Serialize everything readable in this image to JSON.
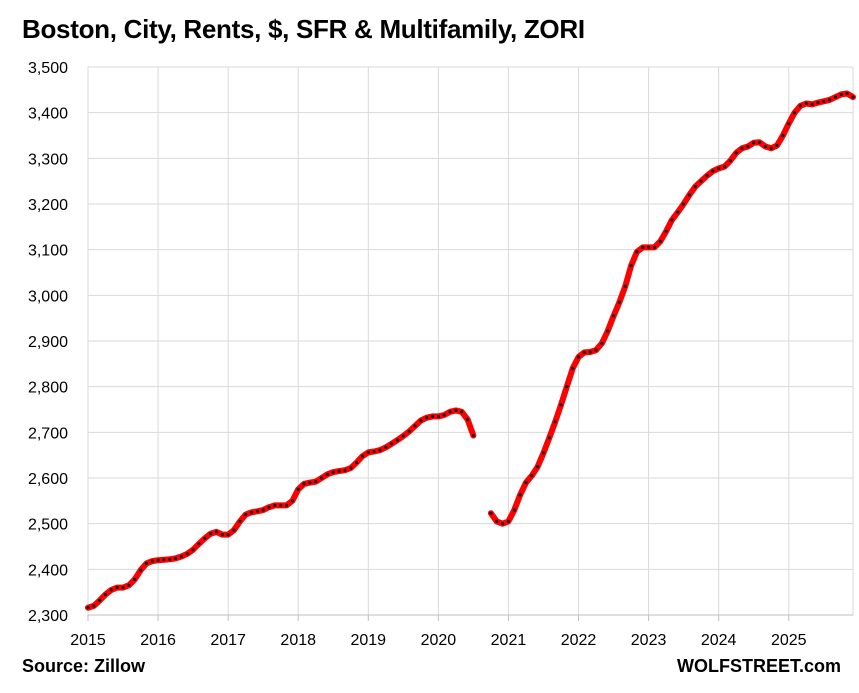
{
  "chart_data": {
    "type": "line",
    "title": "Boston, City, Rents, $, SFR & Multifamily, ZORI",
    "source": "Source: Zillow",
    "brand": "WOLFSTREET.com",
    "xlabel": "",
    "ylabel": "",
    "ylim": [
      2300,
      3500
    ],
    "xlim": [
      2015.0,
      2025.917
    ],
    "y_ticks": [
      2300,
      2400,
      2500,
      2600,
      2700,
      2800,
      2900,
      3000,
      3100,
      3200,
      3300,
      3400,
      3500
    ],
    "y_tick_labels": [
      "2,300",
      "2,400",
      "2,500",
      "2,600",
      "2,700",
      "2,800",
      "2,900",
      "3,000",
      "3,100",
      "3,200",
      "3,300",
      "3,400",
      "3,500"
    ],
    "x_ticks": [
      2015,
      2016,
      2017,
      2018,
      2019,
      2020,
      2021,
      2022,
      2023,
      2024,
      2025
    ],
    "x_tick_labels": [
      "2015",
      "2016",
      "2017",
      "2018",
      "2019",
      "2020",
      "2021",
      "2022",
      "2023",
      "2024",
      "2025"
    ],
    "grid": true,
    "colors": {
      "line": "#ff0000",
      "markers": "#1a1a1a",
      "grid": "#d9d9d9"
    },
    "series": [
      {
        "segments": [
          [
            [
              2015.0,
              2316
            ],
            [
              2015.083,
              2320
            ],
            [
              2015.167,
              2332
            ],
            [
              2015.25,
              2345
            ],
            [
              2015.333,
              2355
            ],
            [
              2015.417,
              2360
            ],
            [
              2015.5,
              2360
            ],
            [
              2015.583,
              2365
            ],
            [
              2015.667,
              2378
            ],
            [
              2015.75,
              2398
            ],
            [
              2015.833,
              2413
            ],
            [
              2015.917,
              2418
            ],
            [
              2016.0,
              2420
            ],
            [
              2016.083,
              2421
            ],
            [
              2016.167,
              2422
            ],
            [
              2016.25,
              2424
            ],
            [
              2016.333,
              2428
            ],
            [
              2016.417,
              2434
            ],
            [
              2016.5,
              2443
            ],
            [
              2016.583,
              2456
            ],
            [
              2016.667,
              2468
            ],
            [
              2016.75,
              2478
            ],
            [
              2016.833,
              2482
            ],
            [
              2016.917,
              2476
            ],
            [
              2017.0,
              2476
            ],
            [
              2017.083,
              2486
            ],
            [
              2017.167,
              2505
            ],
            [
              2017.25,
              2520
            ],
            [
              2017.333,
              2525
            ],
            [
              2017.417,
              2527
            ],
            [
              2017.5,
              2530
            ],
            [
              2017.583,
              2536
            ],
            [
              2017.667,
              2540
            ],
            [
              2017.75,
              2540
            ],
            [
              2017.833,
              2540
            ],
            [
              2017.917,
              2550
            ],
            [
              2018.0,
              2575
            ],
            [
              2018.083,
              2587
            ],
            [
              2018.167,
              2590
            ],
            [
              2018.25,
              2592
            ],
            [
              2018.333,
              2600
            ],
            [
              2018.417,
              2608
            ],
            [
              2018.5,
              2613
            ],
            [
              2018.583,
              2615
            ],
            [
              2018.667,
              2617
            ],
            [
              2018.75,
              2622
            ],
            [
              2018.833,
              2634
            ],
            [
              2018.917,
              2648
            ],
            [
              2019.0,
              2656
            ],
            [
              2019.083,
              2658
            ],
            [
              2019.167,
              2661
            ],
            [
              2019.25,
              2667
            ],
            [
              2019.333,
              2675
            ],
            [
              2019.417,
              2683
            ],
            [
              2019.5,
              2692
            ],
            [
              2019.583,
              2702
            ],
            [
              2019.667,
              2714
            ],
            [
              2019.75,
              2726
            ],
            [
              2019.833,
              2732
            ],
            [
              2019.917,
              2735
            ],
            [
              2020.0,
              2735
            ],
            [
              2020.083,
              2738
            ],
            [
              2020.167,
              2745
            ],
            [
              2020.25,
              2748
            ],
            [
              2020.333,
              2745
            ],
            [
              2020.417,
              2728
            ],
            [
              2020.5,
              2693
            ]
          ],
          [
            [
              2020.75,
              2523
            ],
            [
              2020.833,
              2505
            ],
            [
              2020.917,
              2500
            ],
            [
              2021.0,
              2505
            ],
            [
              2021.083,
              2530
            ],
            [
              2021.167,
              2563
            ],
            [
              2021.25,
              2590
            ],
            [
              2021.333,
              2605
            ],
            [
              2021.417,
              2625
            ],
            [
              2021.5,
              2655
            ],
            [
              2021.583,
              2688
            ],
            [
              2021.667,
              2723
            ],
            [
              2021.75,
              2760
            ],
            [
              2021.833,
              2800
            ],
            [
              2021.917,
              2840
            ],
            [
              2022.0,
              2865
            ],
            [
              2022.083,
              2875
            ],
            [
              2022.167,
              2876
            ],
            [
              2022.25,
              2880
            ],
            [
              2022.333,
              2895
            ],
            [
              2022.417,
              2922
            ],
            [
              2022.5,
              2955
            ],
            [
              2022.583,
              2985
            ],
            [
              2022.667,
              3020
            ],
            [
              2022.75,
              3065
            ],
            [
              2022.833,
              3095
            ],
            [
              2022.917,
              3105
            ],
            [
              2023.0,
              3105
            ],
            [
              2023.083,
              3105
            ],
            [
              2023.167,
              3118
            ],
            [
              2023.25,
              3140
            ],
            [
              2023.333,
              3165
            ],
            [
              2023.417,
              3182
            ],
            [
              2023.5,
              3200
            ],
            [
              2023.583,
              3220
            ],
            [
              2023.667,
              3238
            ],
            [
              2023.75,
              3250
            ],
            [
              2023.833,
              3262
            ],
            [
              2023.917,
              3272
            ],
            [
              2024.0,
              3278
            ],
            [
              2024.083,
              3282
            ],
            [
              2024.167,
              3295
            ],
            [
              2024.25,
              3312
            ],
            [
              2024.333,
              3322
            ],
            [
              2024.417,
              3326
            ],
            [
              2024.5,
              3334
            ],
            [
              2024.583,
              3335
            ],
            [
              2024.667,
              3326
            ],
            [
              2024.75,
              3322
            ],
            [
              2024.833,
              3328
            ],
            [
              2024.917,
              3350
            ],
            [
              2025.0,
              3376
            ],
            [
              2025.083,
              3400
            ],
            [
              2025.167,
              3415
            ],
            [
              2025.25,
              3420
            ],
            [
              2025.333,
              3418
            ],
            [
              2025.417,
              3422
            ],
            [
              2025.5,
              3425
            ],
            [
              2025.583,
              3428
            ],
            [
              2025.667,
              3434
            ],
            [
              2025.75,
              3440
            ],
            [
              2025.833,
              3442
            ],
            [
              2025.917,
              3434
            ]
          ]
        ]
      }
    ]
  }
}
